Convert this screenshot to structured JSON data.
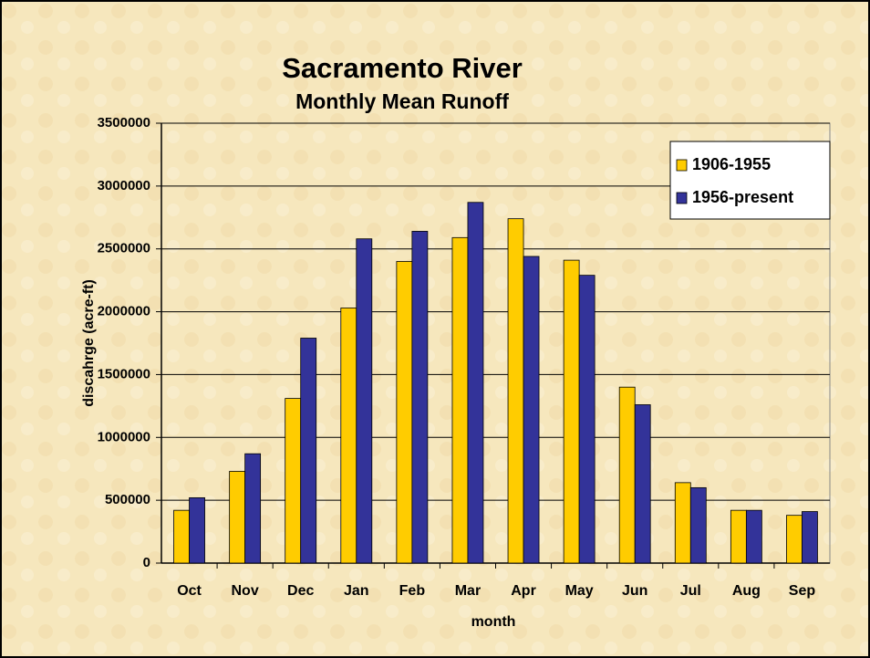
{
  "chart_data": {
    "type": "bar",
    "title": "Sacramento River",
    "subtitle": "Monthly Mean Runoff",
    "x_label": "month",
    "y_label": "discahrge (acre-ft)",
    "categories": [
      "Oct",
      "Nov",
      "Dec",
      "Jan",
      "Feb",
      "Mar",
      "Apr",
      "May",
      "Jun",
      "Jul",
      "Aug",
      "Sep"
    ],
    "series": [
      {
        "name": "1906-1955",
        "color": "#ffcc00",
        "values": [
          420000,
          730000,
          1310000,
          2030000,
          2400000,
          2590000,
          2740000,
          2410000,
          1400000,
          640000,
          420000,
          380000
        ]
      },
      {
        "name": "1956-present",
        "color": "#333399",
        "values": [
          520000,
          870000,
          1790000,
          2580000,
          2640000,
          2870000,
          2440000,
          2290000,
          1260000,
          600000,
          420000,
          410000
        ]
      }
    ],
    "ylim": [
      0,
      3500000
    ],
    "yticks": [
      0,
      500000,
      1000000,
      1500000,
      2000000,
      2500000,
      3000000,
      3500000
    ],
    "grid": true,
    "legend": "upper right"
  }
}
